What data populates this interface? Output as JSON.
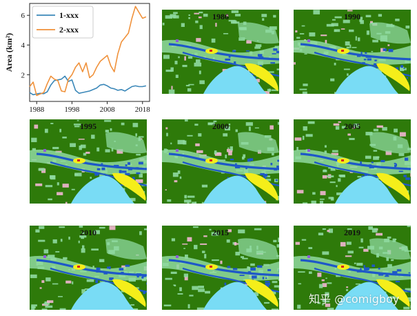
{
  "chart_data": {
    "type": "line",
    "xlabel": "",
    "ylabel": "Area (km²)",
    "xlim": [
      1986,
      2020
    ],
    "ylim": [
      0.2,
      6.8
    ],
    "xticks": [
      1988,
      1998,
      2008,
      2018
    ],
    "yticks": [
      2,
      4,
      6
    ],
    "legend_position": "top-left",
    "series": [
      {
        "name": "1-xxx",
        "color": "#3a87b8",
        "x": [
          1986,
          1987,
          1988,
          1989,
          1990,
          1991,
          1992,
          1993,
          1994,
          1995,
          1996,
          1997,
          1998,
          1999,
          2000,
          2001,
          2002,
          2003,
          2004,
          2005,
          2006,
          2007,
          2008,
          2009,
          2010,
          2011,
          2012,
          2013,
          2014,
          2015,
          2016,
          2017,
          2018,
          2019
        ],
        "y": [
          0.8,
          0.65,
          0.7,
          0.75,
          0.72,
          0.85,
          1.3,
          1.6,
          1.65,
          1.7,
          1.9,
          1.55,
          1.65,
          0.95,
          0.75,
          0.8,
          0.85,
          0.9,
          1.0,
          1.1,
          1.3,
          1.35,
          1.25,
          1.1,
          1.05,
          0.95,
          1.0,
          0.9,
          1.05,
          1.2,
          1.25,
          1.2,
          1.2,
          1.25
        ]
      },
      {
        "name": "2-xxx",
        "color": "#f0913a",
        "x": [
          1986,
          1987,
          1988,
          1989,
          1990,
          1991,
          1992,
          1993,
          1994,
          1995,
          1996,
          1997,
          1998,
          1999,
          2000,
          2001,
          2002,
          2003,
          2004,
          2005,
          2006,
          2007,
          2008,
          2009,
          2010,
          2011,
          2012,
          2013,
          2014,
          2015,
          2016,
          2017,
          2018,
          2019
        ],
        "y": [
          1.2,
          1.5,
          0.6,
          0.7,
          0.8,
          1.4,
          1.9,
          1.7,
          1.6,
          0.9,
          0.85,
          1.7,
          2.0,
          2.5,
          2.8,
          2.2,
          2.8,
          1.8,
          2.0,
          2.5,
          2.9,
          3.1,
          3.3,
          2.6,
          2.2,
          3.4,
          4.2,
          4.5,
          4.8,
          5.8,
          6.6,
          6.2,
          5.8,
          5.9
        ]
      }
    ]
  },
  "maps": [
    {
      "label": "1986",
      "seed": 3
    },
    {
      "label": "1990",
      "seed": 7
    },
    {
      "label": "1995",
      "seed": 11
    },
    {
      "label": "2000",
      "seed": 17
    },
    {
      "label": "2005",
      "seed": 23
    },
    {
      "label": "2010",
      "seed": 29
    },
    {
      "label": "2015",
      "seed": 31
    },
    {
      "label": "2019",
      "seed": 37
    }
  ],
  "map_colors": {
    "forest": "#2e7a0a",
    "grass": "#8fd9a0",
    "pink": "#f2b6d2",
    "blue": "#1e58c8",
    "yellow": "#f5ee1a",
    "water": "#79dcf5",
    "red": "#d62020",
    "purple": "#8c5ad8"
  },
  "watermark": "知乎 @comigboy"
}
